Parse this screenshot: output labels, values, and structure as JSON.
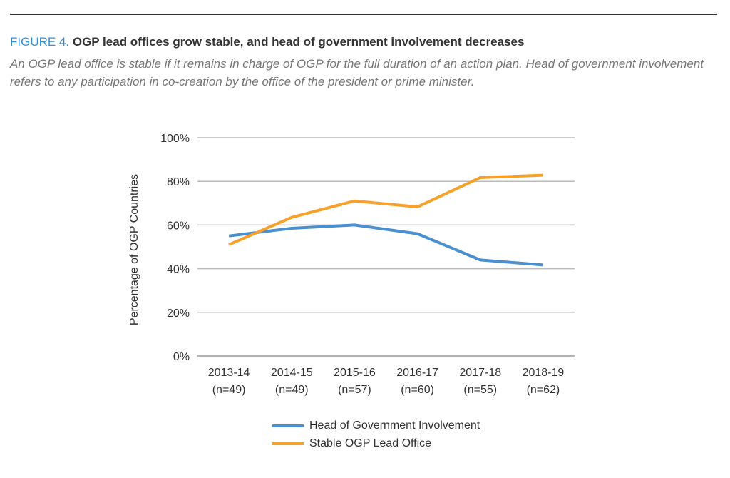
{
  "figure_label": "FIGURE 4.",
  "figure_title": "OGP lead offices grow stable, and head of government involvement decreases",
  "subtitle": "An OGP lead office is stable if it remains in charge of OGP for the full duration of an action plan. Head of government involvement refers to any participation in co-creation by the office of the president or prime minister.",
  "chart_data": {
    "type": "line",
    "ylabel": "Percentage of OGP Countries",
    "xlabel": "",
    "categories": [
      "2013-14",
      "2014-15",
      "2015-16",
      "2016-17",
      "2017-18",
      "2018-19"
    ],
    "category_sublabels": [
      "(n=49)",
      "(n=49)",
      "(n=57)",
      "(n=60)",
      "(n=55)",
      "(n=62)"
    ],
    "ylim": [
      0,
      100
    ],
    "yticks": [
      "0%",
      "20%",
      "40%",
      "60%",
      "80%",
      "100%"
    ],
    "grid": true,
    "legend_position": "bottom",
    "series": [
      {
        "name": "Head of Government Involvement",
        "color": "#4a90d0",
        "values": [
          55,
          58.5,
          60,
          56,
          44,
          41.7
        ]
      },
      {
        "name": "Stable OGP Lead Office",
        "color": "#f7a12a",
        "values": [
          51,
          63.5,
          71,
          68.3,
          81.7,
          82.8
        ]
      }
    ]
  }
}
